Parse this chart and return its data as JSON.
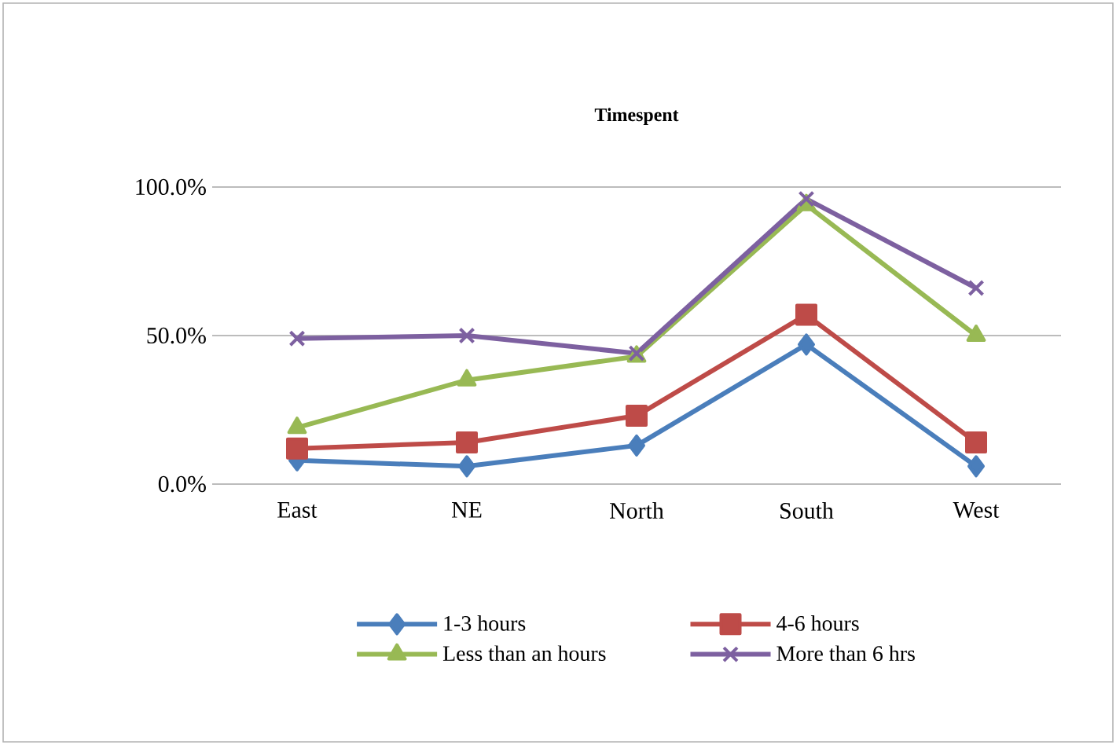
{
  "chart_data": {
    "type": "line",
    "title": "Timespent",
    "categories": [
      "East",
      "NE",
      "North",
      "South",
      "West"
    ],
    "series": [
      {
        "name": "1-3 hours",
        "color": "#4a7ebb",
        "marker": "diamond",
        "values": [
          8,
          6,
          13,
          47,
          6
        ]
      },
      {
        "name": "4-6 hours",
        "color": "#be4b48",
        "marker": "square",
        "values": [
          12,
          14,
          23,
          57,
          14
        ]
      },
      {
        "name": "Less than an hours",
        "color": "#98b954",
        "marker": "triangle",
        "values": [
          19,
          35,
          43,
          94,
          50
        ]
      },
      {
        "name": "More than 6 hrs",
        "color": "#7d60a0",
        "marker": "cross",
        "values": [
          49,
          50,
          44,
          96,
          66
        ]
      }
    ],
    "ylim": [
      0,
      100
    ],
    "yticks": [
      {
        "value": 0,
        "label": "0.0%"
      },
      {
        "value": 50,
        "label": "50.0%"
      },
      {
        "value": 100,
        "label": "100.0%"
      }
    ],
    "grid": "y",
    "legend": "bottom",
    "line_style": "solid"
  }
}
